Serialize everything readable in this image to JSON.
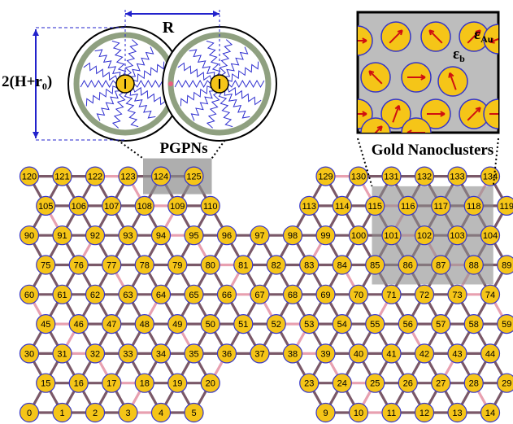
{
  "labels": {
    "pgpn_caption": "PGPNs",
    "gold_caption": "Gold Nanoclusters",
    "r_label": "R",
    "height_label": "2(H+r",
    "height_sub": "0",
    "height_close": ")",
    "eps_b": "ε",
    "eps_b_sub": "b",
    "eps_au": "ε",
    "eps_au_sub": "Au"
  },
  "lattice": {
    "rows": [
      {
        "start": 0,
        "present": [
          0,
          1,
          2,
          3,
          4,
          5,
          9,
          10,
          11,
          12,
          13,
          14
        ]
      },
      {
        "start": 15,
        "present": [
          15,
          16,
          17,
          18,
          19,
          20,
          23,
          24,
          25,
          26,
          27,
          28,
          29
        ]
      },
      {
        "start": 30,
        "present": [
          30,
          31,
          32,
          33,
          34,
          35,
          36,
          37,
          38,
          39,
          40,
          41,
          42,
          43,
          44
        ]
      },
      {
        "start": 45,
        "present": [
          45,
          46,
          47,
          48,
          49,
          50,
          51,
          52,
          53,
          54,
          55,
          56,
          57,
          58,
          59
        ]
      },
      {
        "start": 60,
        "present": [
          60,
          61,
          62,
          63,
          64,
          65,
          66,
          67,
          68,
          69,
          70,
          71,
          72,
          73,
          74
        ]
      },
      {
        "start": 75,
        "present": [
          75,
          76,
          77,
          78,
          79,
          80,
          81,
          82,
          83,
          84,
          85,
          86,
          87,
          88,
          89
        ]
      },
      {
        "start": 90,
        "present": [
          90,
          91,
          92,
          93,
          94,
          95,
          96,
          97,
          98,
          99,
          100,
          101,
          102,
          103,
          104
        ]
      },
      {
        "start": 105,
        "present": [
          105,
          106,
          107,
          108,
          109,
          110,
          113,
          114,
          115,
          116,
          117,
          118,
          119
        ]
      },
      {
        "start": 120,
        "present": [
          120,
          121,
          122,
          123,
          124,
          125,
          129,
          130,
          131,
          132,
          133,
          134
        ]
      }
    ],
    "highlight_pgpn": [
      124,
      125
    ],
    "highlight_gold": [
      116,
      117,
      118,
      101,
      102,
      103,
      86,
      87,
      88
    ]
  },
  "colors": {
    "node_fill": "#f5c518",
    "node_stroke": "#3535c8",
    "bond_dark": "#7a5868",
    "bond_pink": "#e8a0b0",
    "highlight": "#8c8c8c",
    "shell": "#8fa080",
    "ligand": "#3030d0",
    "gold_bg": "#bdbdbd",
    "arrow": "#d01010"
  },
  "gold_arrows_deg": [
    0,
    45,
    135,
    45,
    200,
    135,
    0,
    110,
    0,
    70,
    0,
    45,
    0,
    45,
    180
  ]
}
